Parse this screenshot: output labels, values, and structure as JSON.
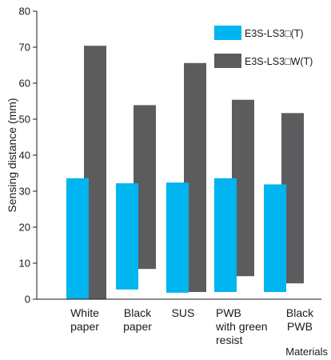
{
  "chart_data": {
    "type": "bar",
    "title": "",
    "ylabel": "Sensing distance (mm)",
    "xlabel": "Materials",
    "ylim": [
      0,
      80
    ],
    "yticks": [
      0,
      10,
      20,
      30,
      40,
      50,
      60,
      70,
      80
    ],
    "grid": false,
    "legend_position": "top-right",
    "categories": [
      [
        "White",
        "paper"
      ],
      [
        "Black",
        "paper"
      ],
      [
        "SUS"
      ],
      [
        "PWB",
        "with green",
        "resist"
      ],
      [
        "Black",
        "PWB"
      ]
    ],
    "series": [
      {
        "name": "E3S-LS3□(T)",
        "color": "#00b4f0",
        "ranges": [
          [
            0,
            33.6
          ],
          [
            2.7,
            32.2
          ],
          [
            1.8,
            32.4
          ],
          [
            2.0,
            33.6
          ],
          [
            2.0,
            31.9
          ]
        ]
      },
      {
        "name": "E3S-LS3□W(T)",
        "color": "#5c5c5e",
        "ranges": [
          [
            0,
            70.4
          ],
          [
            8.4,
            53.9
          ],
          [
            2.0,
            65.6
          ],
          [
            6.4,
            55.4
          ],
          [
            4.4,
            51.7
          ]
        ]
      }
    ]
  }
}
